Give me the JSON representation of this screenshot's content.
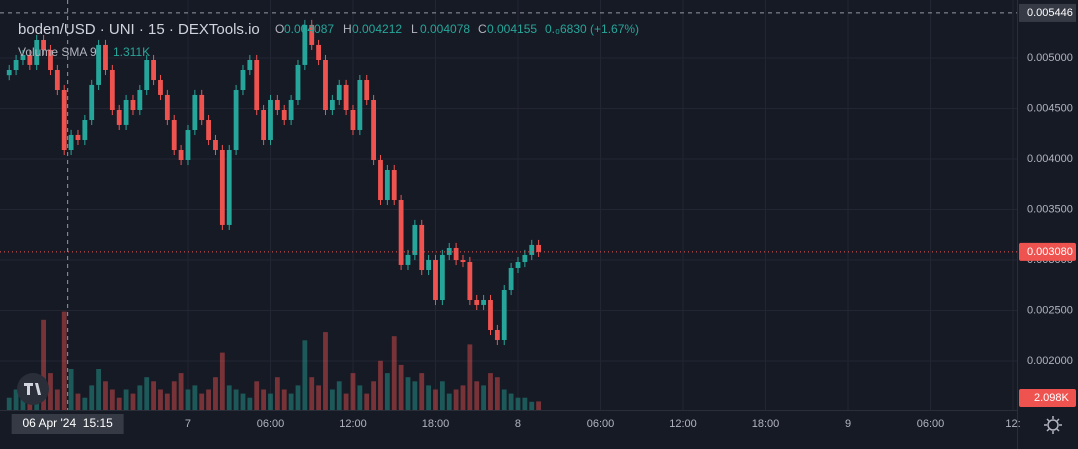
{
  "chart_data": {
    "type": "candlestick",
    "title": "boden/USD · UNI · 15 · DEXTools.io",
    "ohlc_legend": [
      {
        "name": "O",
        "value": 0.004087
      },
      {
        "name": "H",
        "value": 0.004212
      },
      {
        "name": "L",
        "value": 0.004078
      },
      {
        "name": "C",
        "value": 0.004155
      }
    ],
    "change": "0.₀6830 (+1.67%)",
    "volume_legend": {
      "name": "Volume SMA 9",
      "value": 1311,
      "label": "1.311K"
    },
    "up_color": "#26a69a",
    "down_color": "#ef5350",
    "grid": true,
    "xlim": [
      10.33,
      84.29
    ],
    "xticks": [
      {
        "value": 24,
        "label": "7"
      },
      {
        "value": 30,
        "label": "06:00"
      },
      {
        "value": 36,
        "label": "12:00"
      },
      {
        "value": 42,
        "label": "18:00"
      },
      {
        "value": 48,
        "label": "8"
      },
      {
        "value": 54,
        "label": "06:00"
      },
      {
        "value": 60,
        "label": "12:00"
      },
      {
        "value": 66,
        "label": "18:00"
      },
      {
        "value": 72,
        "label": "9"
      },
      {
        "value": 78,
        "label": "06:00"
      },
      {
        "value": 84,
        "label": "12:"
      }
    ],
    "ylim": [
      0.001515,
      0.005574
    ],
    "yticks": [
      {
        "value": 0.002,
        "label": "0.002000"
      },
      {
        "value": 0.0025,
        "label": "0.002500"
      },
      {
        "value": 0.003,
        "label": "0.003000"
      },
      {
        "value": 0.0035,
        "label": "0.003500"
      },
      {
        "value": 0.004,
        "label": "0.004000"
      },
      {
        "value": 0.0045,
        "label": "0.004500"
      },
      {
        "value": 0.005,
        "label": "0.005000"
      }
    ],
    "y2lim": [
      0,
      100000
    ],
    "x": [
      11,
      11.5,
      12,
      12.5,
      13,
      13.5,
      14,
      14.5,
      15,
      15.5,
      16,
      16.5,
      17,
      17.5,
      18,
      18.5,
      19,
      19.5,
      20,
      20.5,
      21,
      21.5,
      22,
      22.5,
      23,
      23.5,
      24,
      24.5,
      25,
      25.5,
      26,
      26.5,
      27,
      27.5,
      28,
      28.5,
      29,
      29.5,
      30,
      30.5,
      31,
      31.5,
      32,
      32.5,
      33,
      33.5,
      34,
      34.5,
      35,
      35.5,
      36,
      36.5,
      37,
      37.5,
      38,
      38.5,
      39,
      39.5,
      40,
      40.5,
      41,
      41.5,
      42,
      42.5,
      43,
      43.5,
      44,
      44.5,
      45,
      45.5,
      46,
      46.5,
      47,
      47.5,
      48,
      48.5,
      49,
      49.5
    ],
    "open": [
      0.00483,
      0.004881,
      0.00498,
      0.00503,
      0.004931,
      0.005178,
      0.005079,
      0.004881,
      0.004683,
      0.004089,
      0.004238,
      0.004188,
      0.004386,
      0.004733,
      0.005129,
      0.004881,
      0.004485,
      0.004337,
      0.004584,
      0.004485,
      0.004683,
      0.00498,
      0.004782,
      0.004634,
      0.004386,
      0.004089,
      0.00399,
      0.004287,
      0.004634,
      0.004386,
      0.004188,
      0.004089,
      0.003347,
      0.004089,
      0.004683,
      0.004881,
      0.00498,
      0.004485,
      0.004188,
      0.004584,
      0.004485,
      0.004386,
      0.004584,
      0.004931,
      0.005327,
      0.005129,
      0.00498,
      0.004485,
      0.004584,
      0.004733,
      0.004485,
      0.004287,
      0.004782,
      0.004584,
      0.00399,
      0.003594,
      0.003891,
      0.003594,
      0.002951,
      0.00305,
      0.003347,
      0.002901,
      0.003,
      0.002604,
      0.00305,
      0.003119,
      0.003,
      0.00298,
      0.002604,
      0.002555,
      0.002604,
      0.002307,
      0.002208,
      0.002703,
      0.002921,
      0.00298,
      0.00305,
      0.003149
    ],
    "high": [
      0.004931,
      0.00503,
      0.00508,
      0.00508,
      0.005228,
      0.005228,
      0.005129,
      0.004931,
      0.004733,
      0.004288,
      0.004288,
      0.004436,
      0.004783,
      0.005179,
      0.005179,
      0.004931,
      0.004535,
      0.004634,
      0.004634,
      0.004733,
      0.00503,
      0.00503,
      0.004832,
      0.004684,
      0.004436,
      0.004139,
      0.004337,
      0.004684,
      0.004684,
      0.004436,
      0.004238,
      0.004139,
      0.004139,
      0.004733,
      0.004931,
      0.00503,
      0.00503,
      0.004535,
      0.004634,
      0.004634,
      0.004535,
      0.004634,
      0.004981,
      0.005377,
      0.005377,
      0.005179,
      0.00503,
      0.004634,
      0.004783,
      0.004783,
      0.004535,
      0.004832,
      0.004832,
      0.004634,
      0.00404,
      0.003941,
      0.003941,
      0.003644,
      0.0031,
      0.003397,
      0.003397,
      0.00305,
      0.00305,
      0.0031,
      0.003169,
      0.003169,
      0.00305,
      0.00303,
      0.002654,
      0.002654,
      0.002654,
      0.002357,
      0.002753,
      0.002971,
      0.00303,
      0.0031,
      0.003199,
      0.003199
    ],
    "low": [
      0.00478,
      0.004831,
      0.00493,
      0.004881,
      0.004881,
      0.005029,
      0.004831,
      0.004633,
      0.004039,
      0.004039,
      0.004138,
      0.004138,
      0.004336,
      0.004683,
      0.004831,
      0.004435,
      0.004287,
      0.004287,
      0.004435,
      0.004435,
      0.004633,
      0.004732,
      0.004584,
      0.004336,
      0.004039,
      0.00394,
      0.00394,
      0.004237,
      0.004336,
      0.004138,
      0.004039,
      0.003297,
      0.003297,
      0.004039,
      0.004633,
      0.004831,
      0.004435,
      0.004138,
      0.004138,
      0.004435,
      0.004336,
      0.004336,
      0.004534,
      0.004881,
      0.005079,
      0.00493,
      0.004435,
      0.004435,
      0.004534,
      0.004435,
      0.004237,
      0.004237,
      0.004534,
      0.00394,
      0.003544,
      0.003544,
      0.003544,
      0.002901,
      0.002901,
      0.003,
      0.002851,
      0.002851,
      0.002554,
      0.002554,
      0.003,
      0.00295,
      0.00293,
      0.002554,
      0.002505,
      0.002505,
      0.002257,
      0.002158,
      0.002158,
      0.002653,
      0.002871,
      0.00293,
      0.003,
      0.00303
    ],
    "close": [
      0.004881,
      0.00498,
      0.00503,
      0.004931,
      0.005178,
      0.005079,
      0.004881,
      0.004683,
      0.004089,
      0.004238,
      0.004188,
      0.004386,
      0.004733,
      0.005129,
      0.004881,
      0.004485,
      0.004337,
      0.004584,
      0.004485,
      0.004683,
      0.00498,
      0.004782,
      0.004634,
      0.004386,
      0.004089,
      0.00399,
      0.004287,
      0.004634,
      0.004386,
      0.004188,
      0.004089,
      0.003347,
      0.004089,
      0.004683,
      0.004881,
      0.00498,
      0.004485,
      0.004188,
      0.004584,
      0.004485,
      0.004386,
      0.004584,
      0.004931,
      0.005327,
      0.005129,
      0.00498,
      0.004485,
      0.004584,
      0.004733,
      0.004485,
      0.004287,
      0.004782,
      0.004584,
      0.00399,
      0.003594,
      0.003891,
      0.003594,
      0.002951,
      0.00305,
      0.003347,
      0.002901,
      0.003,
      0.002604,
      0.00305,
      0.003119,
      0.003,
      0.00298,
      0.002604,
      0.002555,
      0.002604,
      0.002307,
      0.002208,
      0.002703,
      0.002921,
      0.00298,
      0.00305,
      0.003149,
      0.00308
    ],
    "close_last_label": "0.003080",
    "volume": [
      3000,
      5000,
      4000,
      6000,
      8000,
      22000,
      9000,
      5000,
      24000,
      10000,
      4000,
      3000,
      6000,
      10000,
      7000,
      5000,
      3000,
      5000,
      4000,
      6000,
      8000,
      7000,
      5000,
      4000,
      7000,
      9000,
      5000,
      6000,
      4000,
      5000,
      8000,
      14000,
      6000,
      5000,
      4000,
      3000,
      7000,
      5000,
      4000,
      8000,
      5000,
      4000,
      6000,
      17000,
      8000,
      6000,
      19000,
      5000,
      7000,
      4000,
      9000,
      6000,
      4000,
      7000,
      12000,
      9000,
      18000,
      11000,
      8000,
      7000,
      9000,
      6000,
      5000,
      7000,
      4000,
      5000,
      6000,
      16000,
      7000,
      6000,
      9000,
      8000,
      5000,
      4000,
      3000,
      3000,
      2000,
      2098
    ],
    "volume_last_label": "2.098K",
    "crosshair": {
      "x": 15.25,
      "x_label": "06 Apr '24  15:15",
      "y": 0.005446
    }
  }
}
